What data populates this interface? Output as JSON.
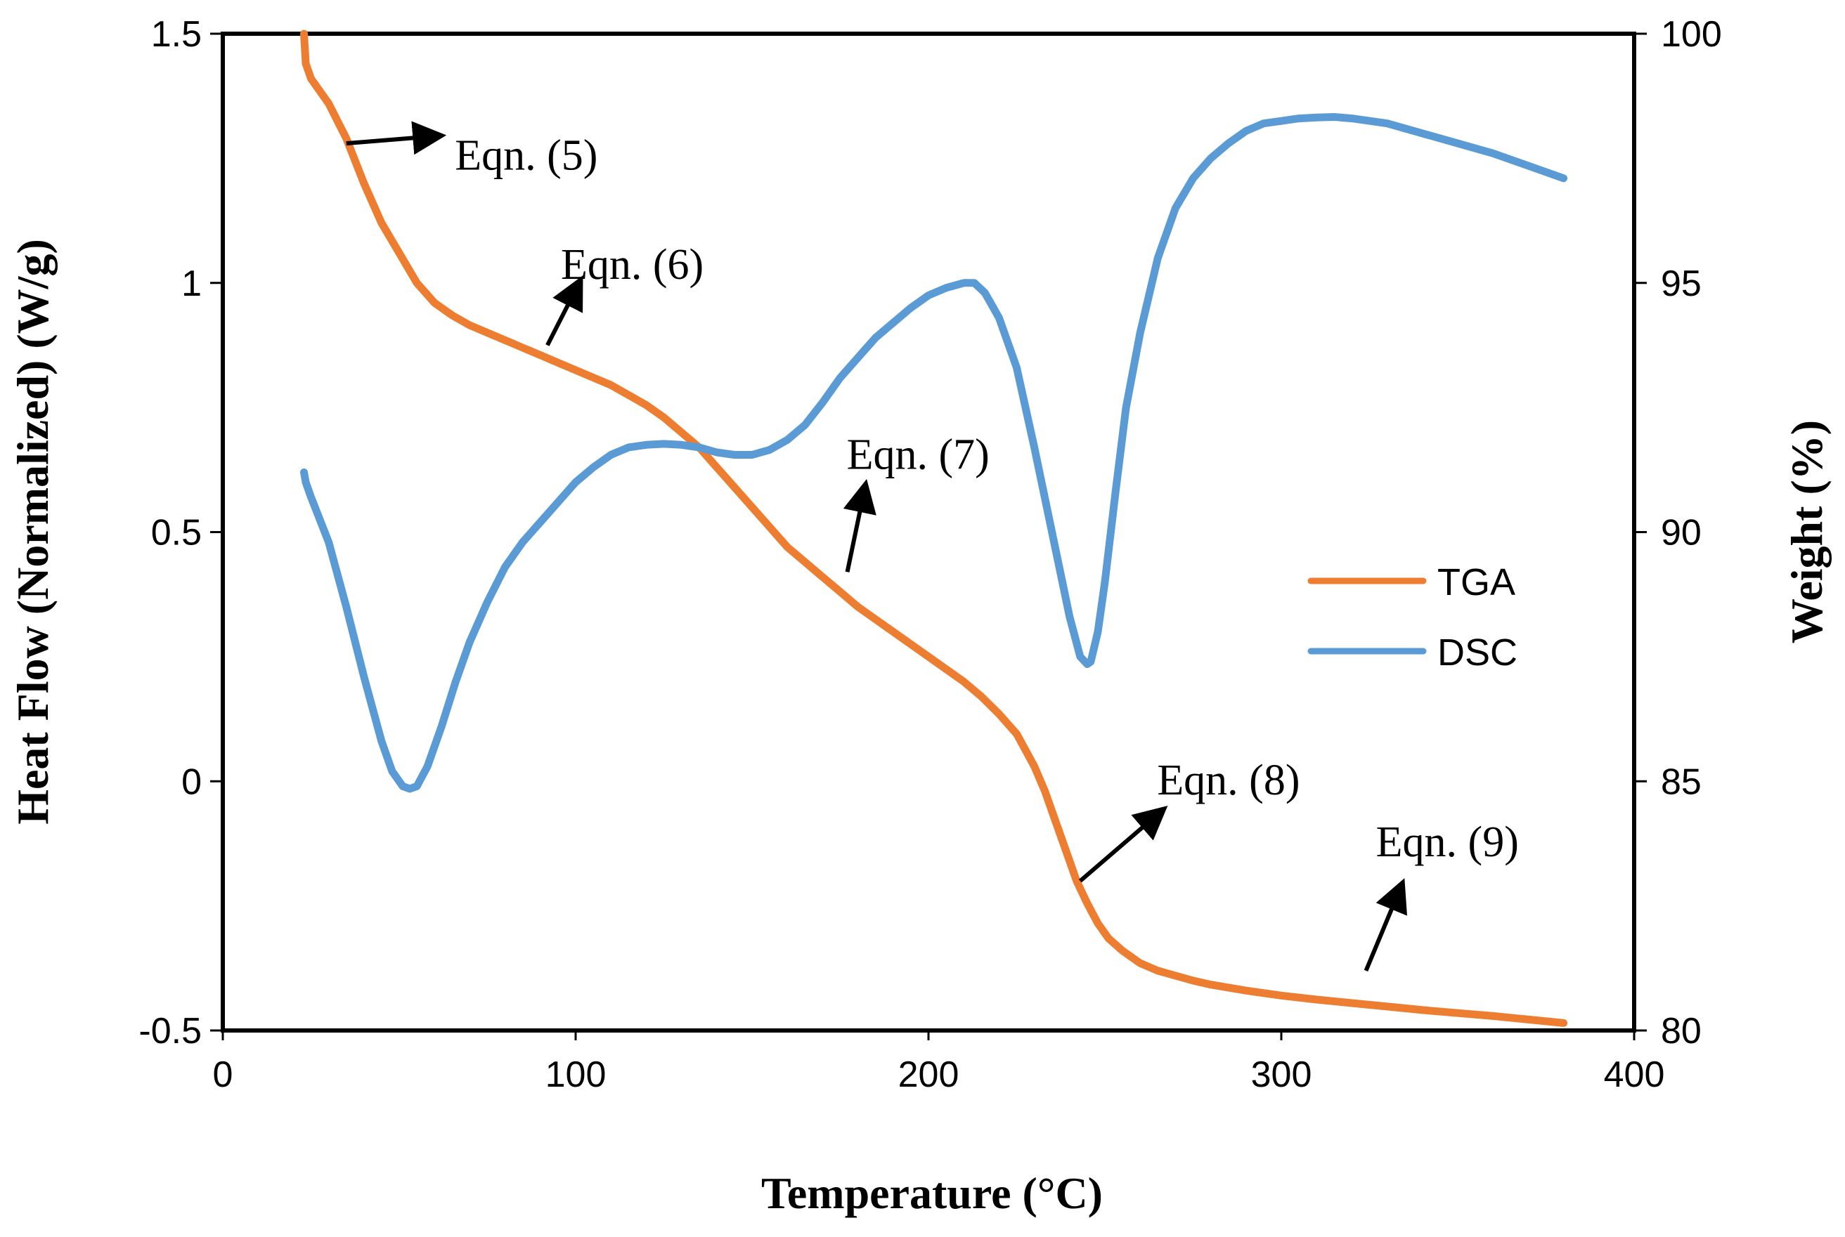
{
  "chart_data": {
    "type": "line",
    "xlabel": "Temperature (°C)",
    "ylabel_left": "Heat Flow (Normalized) (W/g)",
    "ylabel_right": "Weight (%)",
    "xlim": [
      0,
      400
    ],
    "ylim_left": [
      -0.5,
      1.5
    ],
    "ylim_right": [
      80,
      100
    ],
    "x_ticks": [
      "0",
      "100",
      "200",
      "300",
      "400"
    ],
    "y_left_ticks": [
      "-0.5",
      "0",
      "0.5",
      "1",
      "1.5"
    ],
    "y_right_ticks": [
      "80",
      "85",
      "90",
      "95",
      "100"
    ],
    "grid": false,
    "legend_position": "right-middle",
    "series": [
      {
        "name": "TGA",
        "axis": "right",
        "color": "#ED7D31",
        "x": [
          23,
          23.5,
          25,
          30,
          35,
          40,
          45,
          50,
          55,
          60,
          65,
          70,
          75,
          80,
          85,
          90,
          95,
          100,
          105,
          110,
          115,
          120,
          125,
          130,
          135,
          140,
          145,
          150,
          155,
          160,
          165,
          170,
          175,
          180,
          185,
          190,
          195,
          200,
          205,
          210,
          215,
          220,
          225,
          230,
          233,
          236,
          239,
          242,
          245,
          248,
          251,
          255,
          260,
          265,
          270,
          275,
          280,
          290,
          300,
          310,
          320,
          330,
          340,
          350,
          360,
          370,
          380
        ],
        "values": [
          100,
          99.4,
          99.1,
          98.6,
          97.9,
          97.0,
          96.2,
          95.6,
          95.0,
          94.6,
          94.35,
          94.15,
          94.0,
          93.85,
          93.7,
          93.55,
          93.4,
          93.25,
          93.1,
          92.95,
          92.75,
          92.55,
          92.3,
          92.0,
          91.7,
          91.3,
          90.9,
          90.5,
          90.1,
          89.7,
          89.4,
          89.1,
          88.8,
          88.5,
          88.25,
          88.0,
          87.75,
          87.5,
          87.25,
          87.0,
          86.7,
          86.35,
          85.95,
          85.3,
          84.8,
          84.2,
          83.6,
          83.0,
          82.55,
          82.15,
          81.85,
          81.6,
          81.35,
          81.2,
          81.1,
          81.0,
          80.92,
          80.8,
          80.7,
          80.62,
          80.55,
          80.48,
          80.41,
          80.35,
          80.29,
          80.22,
          80.15
        ]
      },
      {
        "name": "DSC",
        "axis": "left",
        "color": "#5B9BD5",
        "x": [
          23,
          23.5,
          25,
          30,
          35,
          40,
          45,
          48,
          51,
          53,
          55,
          58,
          62,
          66,
          70,
          75,
          80,
          85,
          90,
          95,
          100,
          105,
          110,
          115,
          120,
          125,
          130,
          135,
          140,
          145,
          150,
          155,
          160,
          165,
          170,
          175,
          180,
          185,
          190,
          195,
          200,
          205,
          210,
          213,
          216,
          220,
          225,
          230,
          235,
          240,
          243,
          245,
          246,
          248,
          250,
          253,
          256,
          260,
          265,
          270,
          275,
          280,
          285,
          290,
          295,
          300,
          305,
          310,
          315,
          320,
          330,
          340,
          350,
          360,
          370,
          380
        ],
        "values": [
          0.62,
          0.6,
          0.57,
          0.48,
          0.35,
          0.21,
          0.08,
          0.02,
          -0.01,
          -0.015,
          -0.01,
          0.03,
          0.11,
          0.2,
          0.28,
          0.36,
          0.43,
          0.48,
          0.52,
          0.56,
          0.6,
          0.63,
          0.655,
          0.67,
          0.675,
          0.677,
          0.675,
          0.67,
          0.66,
          0.655,
          0.655,
          0.665,
          0.685,
          0.715,
          0.76,
          0.81,
          0.85,
          0.89,
          0.92,
          0.95,
          0.975,
          0.99,
          1.0,
          1.0,
          0.98,
          0.93,
          0.83,
          0.67,
          0.5,
          0.33,
          0.25,
          0.235,
          0.24,
          0.3,
          0.4,
          0.58,
          0.75,
          0.9,
          1.05,
          1.15,
          1.21,
          1.25,
          1.28,
          1.305,
          1.32,
          1.325,
          1.33,
          1.332,
          1.333,
          1.33,
          1.32,
          1.3,
          1.28,
          1.26,
          1.235,
          1.21
        ]
      }
    ],
    "annotations": [
      {
        "text": "Eqn. (5)",
        "tail_x": 35,
        "tail_y": 1.28,
        "head_x": 61,
        "head_y": 1.295
      },
      {
        "text": "Eqn. (6)",
        "tail_x": 92,
        "tail_y": 0.875,
        "head_x": 101,
        "head_y": 1.0
      },
      {
        "text": "Eqn. (7)",
        "tail_x": 177,
        "tail_y": 0.42,
        "head_x": 182,
        "head_y": 0.59
      },
      {
        "text": "Eqn. (8)",
        "tail_x": 243,
        "tail_y": -0.2,
        "head_x": 266,
        "head_y": -0.06
      },
      {
        "text": "Eqn. (9)",
        "tail_x": 324,
        "tail_y": -0.38,
        "head_x": 334,
        "head_y": -0.21
      }
    ]
  }
}
